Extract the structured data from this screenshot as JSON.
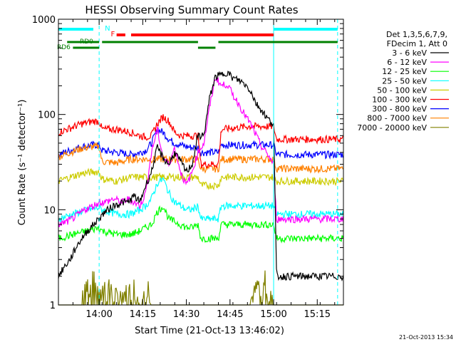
{
  "chart_data": {
    "type": "line",
    "title": "HESSI Observing Summary Count Rates",
    "xlabel": "Start Time (21-Oct-13 13:46:02)",
    "ylabel": "Count Rate (s⁻¹ detector⁻¹)",
    "yscale": "log",
    "ylim": [
      1,
      1000
    ],
    "xlim_minutes": [
      0,
      98
    ],
    "x_ticks": [
      {
        "label": "14:00",
        "minute": 14
      },
      {
        "label": "14:15",
        "minute": 29
      },
      {
        "label": "14:30",
        "minute": 44
      },
      {
        "label": "14:45",
        "minute": 59
      },
      {
        "label": "15:00",
        "minute": 74
      },
      {
        "label": "15:15",
        "minute": 89
      }
    ],
    "y_ticks": [
      {
        "label": "1",
        "value": 1
      },
      {
        "label": "10",
        "value": 10
      },
      {
        "label": "100",
        "value": 100
      },
      {
        "label": "1000",
        "value": 1000
      }
    ],
    "legend_placement": "right",
    "legend_header": [
      "Det 1,3,5,6,7,9,",
      "FDecim 1, Att 0"
    ],
    "series": [
      {
        "name": "3 - 6 keV",
        "color": "#000000",
        "x": [
          0,
          2,
          4,
          6,
          8,
          10,
          13,
          16,
          19,
          22,
          24,
          26,
          28,
          30,
          32,
          34,
          36,
          38,
          40,
          42,
          44,
          46,
          48,
          50,
          52,
          54,
          56,
          58,
          60,
          62,
          64,
          66,
          68,
          70,
          72,
          74,
          75,
          77,
          80,
          85,
          90,
          95,
          98
        ],
        "y": [
          2,
          2.5,
          3,
          4,
          5,
          6,
          7.5,
          9.5,
          11,
          12,
          12,
          14,
          12,
          18,
          25,
          45,
          35,
          30,
          40,
          32,
          25,
          30,
          60,
          60,
          150,
          250,
          260,
          280,
          240,
          230,
          210,
          180,
          130,
          110,
          90,
          80,
          2,
          2,
          2,
          2,
          2,
          2,
          2
        ]
      },
      {
        "name": "6 - 12 keV",
        "color": "#ff00ff",
        "x": [
          0,
          3,
          6,
          9,
          12,
          14,
          16,
          19,
          22,
          24,
          26,
          28,
          30,
          32,
          34,
          36,
          38,
          40,
          42,
          44,
          46,
          48,
          50,
          52,
          54,
          56,
          58,
          60,
          62,
          64,
          66,
          68,
          70,
          72,
          74,
          75,
          78,
          82,
          86,
          90,
          95,
          98
        ],
        "y": [
          7,
          7.5,
          8.5,
          10,
          11,
          12,
          12,
          13,
          12,
          13,
          12,
          11,
          15,
          40,
          70,
          35,
          30,
          45,
          25,
          18,
          25,
          40,
          50,
          120,
          250,
          200,
          210,
          160,
          130,
          100,
          80,
          60,
          45,
          38,
          30,
          8,
          8,
          8,
          8,
          8,
          8,
          8
        ]
      },
      {
        "name": "12 - 25 keV",
        "color": "#00ff00",
        "x": [
          0,
          5,
          10,
          14,
          15,
          20,
          25,
          28,
          30,
          32,
          34,
          36,
          38,
          40,
          42,
          44,
          46,
          48,
          49,
          55,
          56,
          60,
          65,
          70,
          74,
          75,
          80,
          85,
          90,
          95,
          98
        ],
        "y": [
          5,
          5.5,
          6,
          6.5,
          6,
          5.5,
          5.5,
          6,
          6.5,
          7,
          9.5,
          11,
          8,
          7.5,
          7,
          6.5,
          6.5,
          7,
          5,
          5,
          7,
          7,
          7,
          7,
          7,
          5,
          5,
          5,
          5,
          5,
          5
        ]
      },
      {
        "name": "25 - 50 keV",
        "color": "#00ffff",
        "x": [
          0,
          5,
          10,
          14,
          15,
          20,
          25,
          28,
          30,
          32,
          34,
          36,
          38,
          40,
          42,
          44,
          46,
          48,
          49,
          55,
          56,
          60,
          65,
          70,
          74,
          75,
          80,
          85,
          90,
          95,
          98
        ],
        "y": [
          8,
          9,
          10,
          10.5,
          10,
          9,
          9,
          10,
          11,
          13,
          19,
          21,
          15,
          12,
          11,
          10,
          10,
          11,
          8,
          8,
          11,
          11,
          11,
          11,
          11,
          9,
          9,
          9,
          9,
          9,
          9
        ]
      },
      {
        "name": "50 - 100 keV",
        "color": "#cccc00",
        "x": [
          0,
          4,
          8,
          12,
          14,
          15,
          20,
          25,
          30,
          35,
          40,
          45,
          48,
          49,
          55,
          56,
          60,
          65,
          70,
          74,
          75,
          80,
          85,
          90,
          95,
          98
        ],
        "y": [
          20,
          22,
          24,
          25,
          25,
          21,
          20,
          22,
          22,
          22,
          22,
          22,
          22,
          18,
          18,
          22,
          22,
          22,
          22,
          22,
          20,
          20,
          20,
          20,
          20,
          20
        ]
      },
      {
        "name": "100 - 300 keV",
        "color": "#ff0000",
        "x": [
          0,
          4,
          8,
          12,
          14,
          15,
          20,
          25,
          28,
          30,
          32,
          34,
          36,
          38,
          40,
          42,
          44,
          46,
          48,
          49,
          55,
          56,
          60,
          65,
          70,
          74,
          75,
          80,
          85,
          90,
          95,
          98
        ],
        "y": [
          65,
          72,
          80,
          85,
          85,
          70,
          70,
          65,
          60,
          58,
          60,
          80,
          95,
          85,
          65,
          60,
          60,
          60,
          60,
          30,
          30,
          70,
          72,
          75,
          75,
          75,
          55,
          55,
          55,
          55,
          55,
          55
        ]
      },
      {
        "name": "300 - 800 keV",
        "color": "#0000ff",
        "x": [
          0,
          4,
          8,
          12,
          14,
          15,
          20,
          25,
          28,
          30,
          32,
          34,
          36,
          38,
          40,
          42,
          44,
          46,
          48,
          49,
          55,
          56,
          60,
          65,
          70,
          74,
          75,
          80,
          85,
          90,
          95,
          98
        ],
        "y": [
          38,
          42,
          46,
          48,
          48,
          42,
          40,
          38,
          40,
          42,
          50,
          70,
          65,
          55,
          50,
          48,
          46,
          45,
          45,
          40,
          40,
          48,
          48,
          48,
          48,
          48,
          38,
          38,
          38,
          38,
          38,
          38
        ]
      },
      {
        "name": "800 - 7000 keV",
        "color": "#ff8000",
        "x": [
          0,
          4,
          8,
          12,
          14,
          15,
          20,
          25,
          30,
          35,
          40,
          45,
          48,
          49,
          55,
          56,
          60,
          65,
          70,
          74,
          75,
          80,
          85,
          90,
          95,
          98
        ],
        "y": [
          36,
          40,
          44,
          46,
          46,
          32,
          31,
          34,
          34,
          34,
          34,
          34,
          34,
          27,
          27,
          34,
          34,
          34,
          34,
          34,
          27,
          27,
          27,
          27,
          27,
          27
        ]
      },
      {
        "name": "7000 - 20000 keV",
        "color": "#808000",
        "x": [
          0,
          5,
          8,
          8.5,
          15,
          20,
          25,
          27,
          28,
          29,
          30,
          31,
          32,
          33,
          34,
          40,
          45,
          50,
          55,
          60,
          65,
          69,
          70,
          71,
          72,
          73,
          74,
          75,
          80,
          85,
          90,
          95,
          98
        ],
        "y": [
          1,
          1,
          1,
          2,
          2,
          1.4,
          1.6,
          2,
          1,
          2.5,
          1,
          2,
          1,
          1.5,
          1,
          1,
          1,
          1,
          1,
          1,
          1,
          2,
          1,
          2.5,
          1,
          2,
          1,
          1,
          1,
          1,
          1,
          1,
          1
        ]
      }
    ],
    "annotations": {
      "night_markers": {
        "label": "N",
        "color": "#00ffff",
        "solid_minutes": [
          0,
          74
        ],
        "dashed_minutes": [
          14,
          96
        ]
      },
      "night_bars": [
        [
          0,
          12
        ],
        [
          74,
          96
        ]
      ],
      "flare_label": {
        "text": "F",
        "color": "#ff0000",
        "minute": 18
      },
      "flare_bars": [
        [
          20,
          23
        ],
        [
          25,
          74
        ]
      ],
      "saa_bars": [
        {
          "label": "RD0",
          "color": "#008000",
          "minutes": [
            3,
            14
          ]
        },
        {
          "label": "RD6",
          "color": "#008000",
          "minutes": [
            5,
            14
          ]
        },
        {
          "label": "",
          "color": "#008000",
          "minutes": [
            15,
            48
          ]
        },
        {
          "label": "",
          "color": "#008000",
          "minutes": [
            48,
            54
          ]
        },
        {
          "label": "",
          "color": "#008000",
          "minutes": [
            55,
            96
          ]
        }
      ]
    },
    "timestamp": "21-Oct-2013 15:34"
  }
}
